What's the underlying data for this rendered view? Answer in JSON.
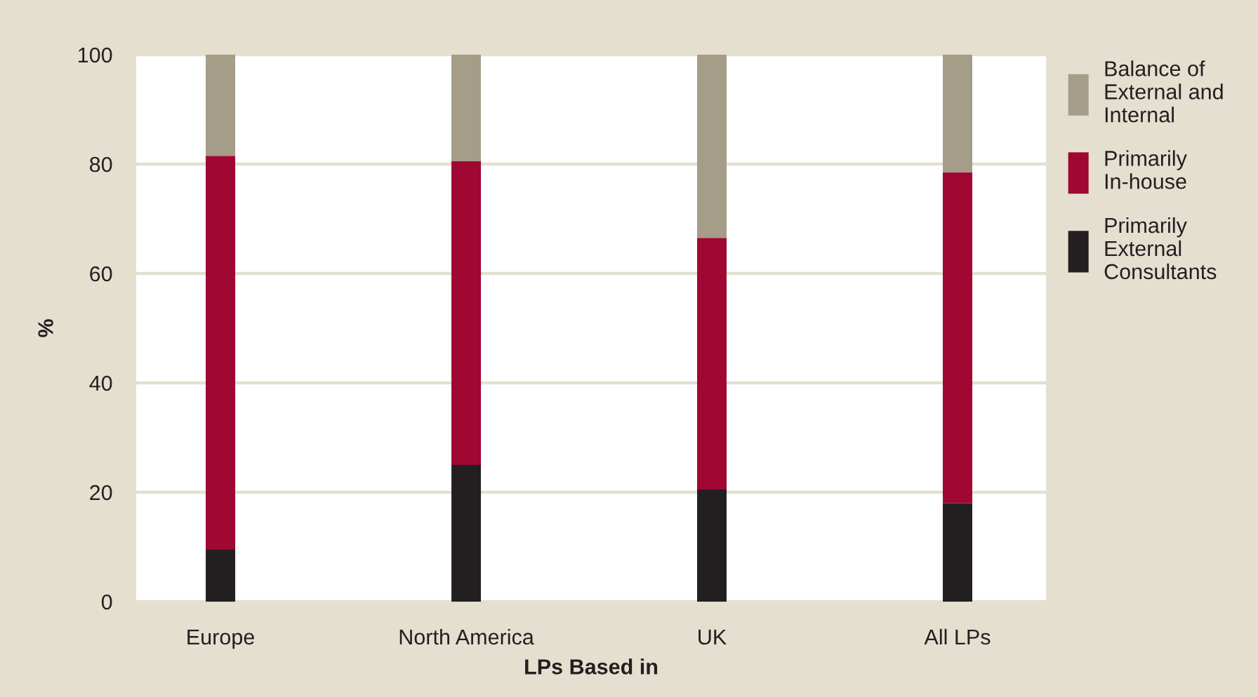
{
  "chart_data": {
    "type": "bar",
    "stacked": true,
    "xlabel": "LPs Based in",
    "ylabel": "%",
    "categories": [
      "Europe",
      "North America",
      "UK",
      "All LPs"
    ],
    "series": [
      {
        "name": "Primarily External Consultants",
        "color": "#231f20",
        "values": [
          9.5,
          25,
          20.5,
          18
        ]
      },
      {
        "name": "Primarily In-house",
        "color": "#a00733",
        "values": [
          72,
          55.5,
          46,
          60.5
        ]
      },
      {
        "name": "Balance of External and Internal",
        "color": "#a59d87",
        "values": [
          18.5,
          19.5,
          33.5,
          21.5
        ]
      }
    ],
    "ylim": [
      0,
      100
    ],
    "yticks": [
      0,
      20,
      40,
      60,
      80,
      100
    ],
    "grid": "y",
    "legend": "right"
  }
}
